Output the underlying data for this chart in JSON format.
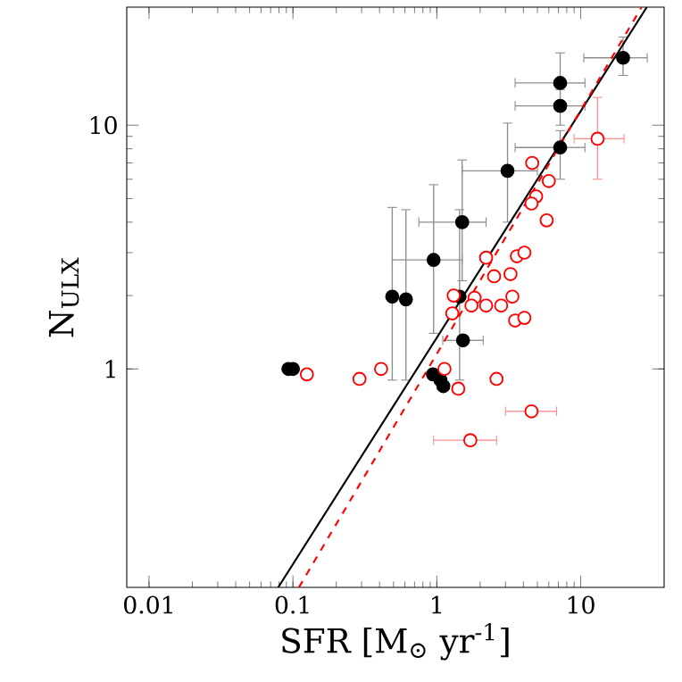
{
  "chart_data": {
    "type": "scatter",
    "xlabel": "SFR [M$_{⊙}$ yr$^{-1}$]",
    "ylabel": "N$_{ULX}$",
    "log": "xy",
    "xlim": [
      0.007,
      38
    ],
    "ylim": [
      0.127,
      30.5
    ],
    "xticks": [
      0.01,
      0.1,
      1,
      10
    ],
    "yticks": [
      1,
      10
    ],
    "grid": false,
    "series": [
      {
        "color": "#000000",
        "marker": "circle",
        "x": [
          19.7,
          7.2,
          7.2,
          7.2,
          3.1,
          1.5,
          0.95,
          0.49,
          0.61,
          1.44,
          1.52,
          0.94,
          1.06,
          1.11,
          0.093,
          0.1
        ],
        "values": [
          18.9,
          14.9,
          12.0,
          8.1,
          6.5,
          4.0,
          2.8,
          1.98,
          1.93,
          1.98,
          1.31,
          0.95,
          0.9,
          0.85,
          1.0,
          1.0
        ],
        "errors": [
          [
            16,
            23
          ],
          [
            14.5,
            19.8
          ],
          [
            10,
            14
          ],
          [
            6,
            9.5
          ],
          [
            4,
            10.2
          ],
          [
            2.3,
            7.2
          ],
          [
            1.4,
            5.7
          ],
          [
            0.9,
            4.6
          ],
          [
            0.9,
            4.5
          ],
          [
            0.9,
            4.5
          ],
          null,
          null,
          null,
          null,
          null,
          null
        ],
        "xerrors": [
          [
            10.5,
            29
          ],
          [
            3.5,
            10.7
          ],
          [
            3.5,
            10.7
          ],
          [
            3.5,
            10.7
          ],
          [
            1.5,
            5
          ],
          [
            0.75,
            2.2
          ],
          [
            0.49,
            1.5
          ],
          null,
          null,
          null,
          [
            1.1,
            2.1
          ],
          null,
          null,
          null,
          null,
          null
        ]
      },
      {
        "color": "#ff0000",
        "marker": "circle",
        "x": [
          13.1,
          4.6,
          6.0,
          4.9,
          4.55,
          5.8,
          2.2,
          3.6,
          4.06,
          2.5,
          3.25,
          1.31,
          1.83,
          3.35,
          1.28,
          1.74,
          2.2,
          2.8,
          3.5,
          4.06,
          0.41,
          0.29,
          1.13,
          2.6,
          1.41,
          4.55,
          1.71,
          0.125
        ],
        "values": [
          8.8,
          7.0,
          5.9,
          5.1,
          4.77,
          4.07,
          2.86,
          2.9,
          3.0,
          2.4,
          2.45,
          2.0,
          1.96,
          1.98,
          1.69,
          1.82,
          1.82,
          1.82,
          1.58,
          1.62,
          1.0,
          0.91,
          1.0,
          0.91,
          0.83,
          0.67,
          0.51,
          0.95
        ],
        "errors": [
          [
            6,
            13
          ],
          null,
          null,
          null,
          null,
          null,
          null,
          null,
          null,
          null,
          null,
          null,
          null,
          null,
          null,
          null,
          null,
          null,
          null,
          null,
          null,
          null,
          null,
          null,
          null,
          null,
          null,
          null
        ],
        "xerrors": [
          [
            9,
            20
          ],
          null,
          null,
          null,
          null,
          null,
          null,
          null,
          null,
          null,
          null,
          null,
          null,
          null,
          null,
          null,
          null,
          null,
          null,
          null,
          null,
          null,
          null,
          null,
          null,
          [
            3,
            6.8
          ],
          [
            0.95,
            2.6
          ],
          null
        ]
      },
      {
        "type": "line",
        "color": "#000000",
        "line_style": "solid",
        "marker": "none",
        "x": [
          0.079,
          28.8
        ],
        "values": [
          0.127,
          30.5
        ]
      },
      {
        "type": "line",
        "color": "#ff0000",
        "line_style": "dashed",
        "marker": "none",
        "x": [
          0.11,
          26.5
        ],
        "values": [
          0.127,
          30.5
        ]
      }
    ]
  }
}
